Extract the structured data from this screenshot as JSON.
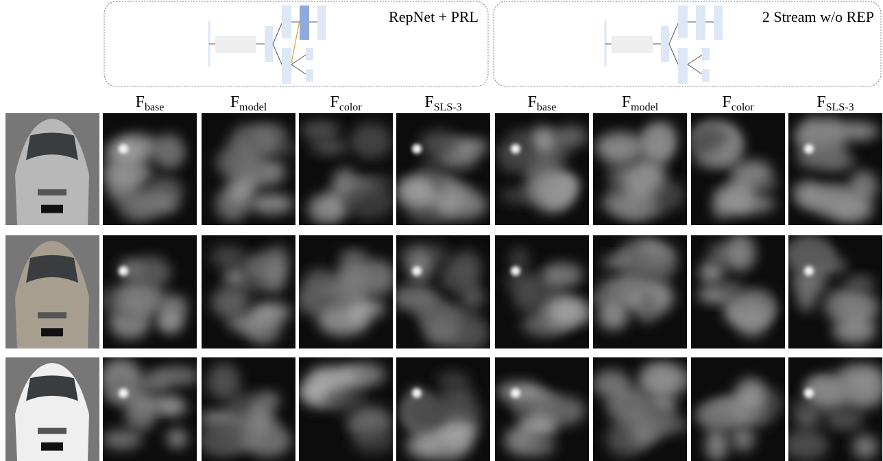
{
  "panels": [
    {
      "title": "RepNet + PRL"
    },
    {
      "title": "2 Stream w/o REP"
    }
  ],
  "column_headers": [
    {
      "main": "F",
      "sub": "base"
    },
    {
      "main": "F",
      "sub": "model"
    },
    {
      "main": "F",
      "sub": "color"
    },
    {
      "main": "F",
      "sub": "SLS-3"
    },
    {
      "main": "F",
      "sub": "base"
    },
    {
      "main": "F",
      "sub": "model"
    },
    {
      "main": "F",
      "sub": "color"
    },
    {
      "main": "F",
      "sub": "SLS-3"
    }
  ]
}
